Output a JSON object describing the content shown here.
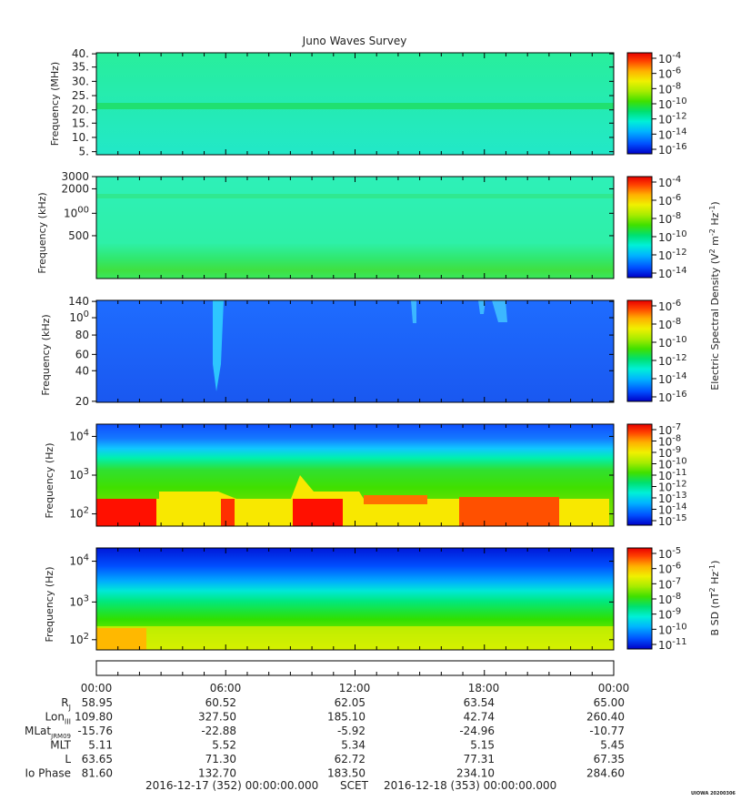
{
  "title": "Juno Waves Survey",
  "colors": {
    "cmap": [
      "#0000c8",
      "#0050ff",
      "#00b4ff",
      "#00f0d8",
      "#00e070",
      "#40e000",
      "#a8ec00",
      "#f0f000",
      "#ffb000",
      "#ff4000",
      "#e80000"
    ],
    "panel1_bg": "#2ef0b0",
    "panel2_bg": "#2ef0b0",
    "panel3_bg": "#1e64ff",
    "frame": "#000000"
  },
  "chart_data": [
    {
      "type": "heatmap",
      "ylabel": "Frequency (MHz)",
      "yticks": [
        "40.",
        "35.",
        "30.",
        "25.",
        "20.",
        "15.",
        "10.",
        "5."
      ],
      "colorbar_ticks": [
        "10-4",
        "10-6",
        "10-8",
        "10-10",
        "10-12",
        "10-14",
        "10-16"
      ]
    },
    {
      "type": "heatmap",
      "ylabel": "Frequency (kHz)",
      "yticks": [
        "3000",
        "2000",
        "1000",
        "500"
      ],
      "colorbar_ticks": [
        "10-4",
        "10-6",
        "10-8",
        "10-10",
        "10-12",
        "10-14"
      ],
      "colorbar_label": "Electric Spectral Density (V2 m-2 Hz-1)"
    },
    {
      "type": "heatmap",
      "ylabel": "Frequency (kHz)",
      "yticks": [
        "140",
        "100",
        "80",
        "60",
        "40",
        "20"
      ],
      "colorbar_ticks": [
        "10-6",
        "10-8",
        "10-10",
        "10-12",
        "10-14",
        "10-16"
      ]
    },
    {
      "type": "heatmap",
      "ylabel": "Frequency (Hz)",
      "yticks": [
        "104",
        "103",
        "102"
      ],
      "colorbar_ticks": [
        "10-7",
        "10-8",
        "10-9",
        "10-10",
        "10-11",
        "10-12",
        "10-13",
        "10-14",
        "10-15"
      ]
    },
    {
      "type": "heatmap",
      "ylabel": "Frequency (Hz)",
      "yticks": [
        "104",
        "103",
        "102"
      ],
      "colorbar_ticks": [
        "10-5",
        "10-6",
        "10-7",
        "10-8",
        "10-9",
        "10-10",
        "10-11"
      ],
      "colorbar_label": "B SD (nT2 Hz-1)"
    }
  ],
  "ephemeris": {
    "times": [
      "00:00",
      "06:00",
      "12:00",
      "18:00",
      "00:00"
    ],
    "rows": [
      {
        "label": "RJ",
        "values": [
          "58.95",
          "60.52",
          "62.05",
          "63.54",
          "65.00"
        ]
      },
      {
        "label": "LonIII",
        "values": [
          "109.80",
          "327.50",
          "185.10",
          "42.74",
          "260.40"
        ]
      },
      {
        "label": "MLatJRM09",
        "values": [
          "-15.76",
          "-22.88",
          "-5.92",
          "-24.96",
          "-10.77"
        ]
      },
      {
        "label": "MLT",
        "values": [
          "5.11",
          "5.52",
          "5.34",
          "5.15",
          "5.45"
        ]
      },
      {
        "label": "L",
        "values": [
          "63.65",
          "71.30",
          "62.72",
          "77.31",
          "67.35"
        ]
      },
      {
        "label": "Io Phase",
        "values": [
          "81.60",
          "132.70",
          "183.50",
          "234.10",
          "284.60"
        ]
      }
    ]
  },
  "footer": {
    "start": "2016-12-17 (352) 00:00:00.000",
    "scet": "SCET",
    "end": "2016-12-18 (353) 00:00:00.000",
    "stamp": "UIOWA 20200306"
  }
}
